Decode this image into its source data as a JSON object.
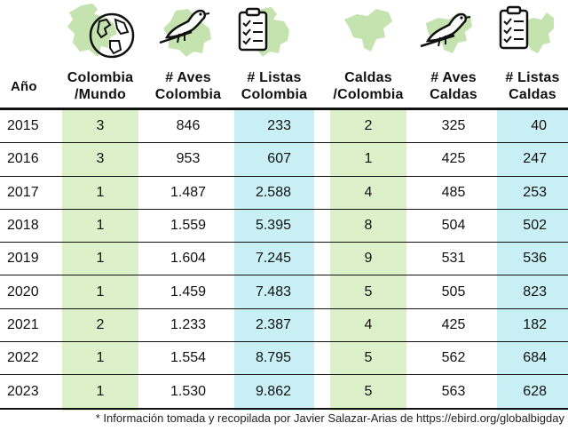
{
  "headers": {
    "year": "Año",
    "colombia_mundo": "Colombia\n/Mundo",
    "aves_colombia": "# Aves\nColombia",
    "listas_colombia": "# Listas\nColombia",
    "caldas_colombia": "Caldas\n/Colombia",
    "aves_caldas": "# Aves\nCaldas",
    "listas_caldas": "# Listas\nCaldas"
  },
  "icons": [
    "colombia-map-icon",
    "globe-icon",
    "bird-colombia-icon",
    "checklist-colombia-icon",
    "caldas-map-icon",
    "bird-caldas-icon",
    "checklist-caldas-icon"
  ],
  "colors": {
    "green_column": "#dcf1c9",
    "cyan_column": "#c8f0f5",
    "map_fill": "#c5e3ae",
    "rule": "#111111"
  },
  "rows": [
    {
      "year": "2015",
      "col_mundo": "3",
      "aves_col": "846",
      "listas_col": "233",
      "cal_col": "2",
      "aves_cal": "325",
      "listas_cal": "40"
    },
    {
      "year": "2016",
      "col_mundo": "3",
      "aves_col": "953",
      "listas_col": "607",
      "cal_col": "1",
      "aves_cal": "425",
      "listas_cal": "247"
    },
    {
      "year": "2017",
      "col_mundo": "1",
      "aves_col": "1.487",
      "listas_col": "2.588",
      "cal_col": "4",
      "aves_cal": "485",
      "listas_cal": "253"
    },
    {
      "year": "2018",
      "col_mundo": "1",
      "aves_col": "1.559",
      "listas_col": "5.395",
      "cal_col": "8",
      "aves_cal": "504",
      "listas_cal": "502"
    },
    {
      "year": "2019",
      "col_mundo": "1",
      "aves_col": "1.604",
      "listas_col": "7.245",
      "cal_col": "9",
      "aves_cal": "531",
      "listas_cal": "536"
    },
    {
      "year": "2020",
      "col_mundo": "1",
      "aves_col": "1.459",
      "listas_col": "7.483",
      "cal_col": "5",
      "aves_cal": "505",
      "listas_cal": "823"
    },
    {
      "year": "2021",
      "col_mundo": "2",
      "aves_col": "1.233",
      "listas_col": "2.387",
      "cal_col": "4",
      "aves_cal": "425",
      "listas_cal": "182"
    },
    {
      "year": "2022",
      "col_mundo": "1",
      "aves_col": "1.554",
      "listas_col": "8.795",
      "cal_col": "5",
      "aves_cal": "562",
      "listas_cal": "684"
    },
    {
      "year": "2023",
      "col_mundo": "1",
      "aves_col": "1.530",
      "listas_col": "9.862",
      "cal_col": "5",
      "aves_cal": "563",
      "listas_cal": "628"
    }
  ],
  "footnote": "* Información tomada y recopilada por Javier Salazar-Arias de https://ebird.org/globalbigday"
}
